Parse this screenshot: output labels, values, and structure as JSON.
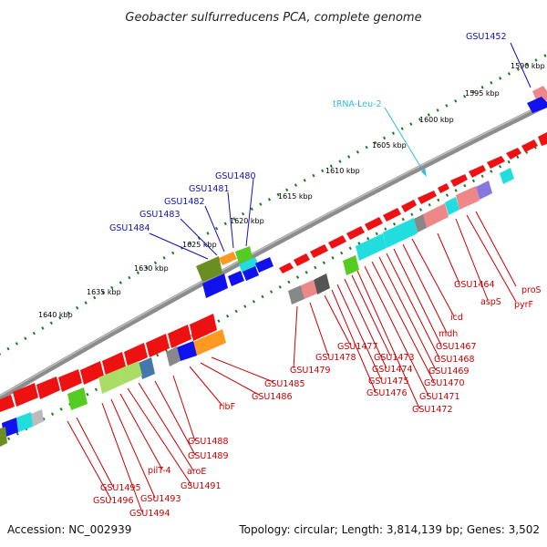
{
  "title": "Geobacter sulfurreducens PCA, complete genome",
  "footer": {
    "accession": "Accession: NC_002939",
    "topology": "Topology: circular; Length: 3,814,139 bp; Genes: 3,502"
  },
  "colors": {
    "backbone": "#8c8c8c",
    "tick": "#1f7a1f",
    "label_red": "#cc0000",
    "label_blue": "#1111bb",
    "label_cyan": "#33bbdd",
    "gene_red": "#ee1111",
    "gene_green": "#55cc22",
    "gene_olive": "#6b8e23",
    "gene_blue": "#1111ee",
    "gene_cyan": "#22dddd",
    "gene_pink": "#ee8888",
    "gene_orange": "#ff9922",
    "gene_gray": "#888888"
  },
  "scale_labels": [
    "1590 kbp",
    "1595 kbp",
    "1600 kbp",
    "1605 kbp",
    "1610 kbp",
    "1615 kbp",
    "1620 kbp",
    "1625 kbp",
    "1630 kbp",
    "1635 kbp",
    "1640 kbp"
  ],
  "blue_labels": [
    "GSU1452",
    "GSU1480",
    "GSU1481",
    "GSU1482",
    "GSU1483",
    "GSU1484"
  ],
  "cyan_labels": [
    "tRNA-Leu-2"
  ],
  "red_labels": [
    "proS",
    "pyrF",
    "aspS",
    "GSU1464",
    "icd",
    "mdh",
    "GSU1467",
    "GSU1468",
    "GSU1469",
    "GSU1470",
    "GSU1471",
    "GSU1472",
    "GSU1473",
    "GSU1474",
    "GSU1475",
    "GSU1476",
    "GSU1477",
    "GSU1478",
    "GSU1479",
    "GSU1485",
    "GSU1486",
    "ribF",
    "GSU1488",
    "GSU1489",
    "aroE",
    "GSU1491",
    "pilT-4",
    "GSU1493",
    "GSU1494",
    "GSU1495",
    "GSU1496"
  ]
}
